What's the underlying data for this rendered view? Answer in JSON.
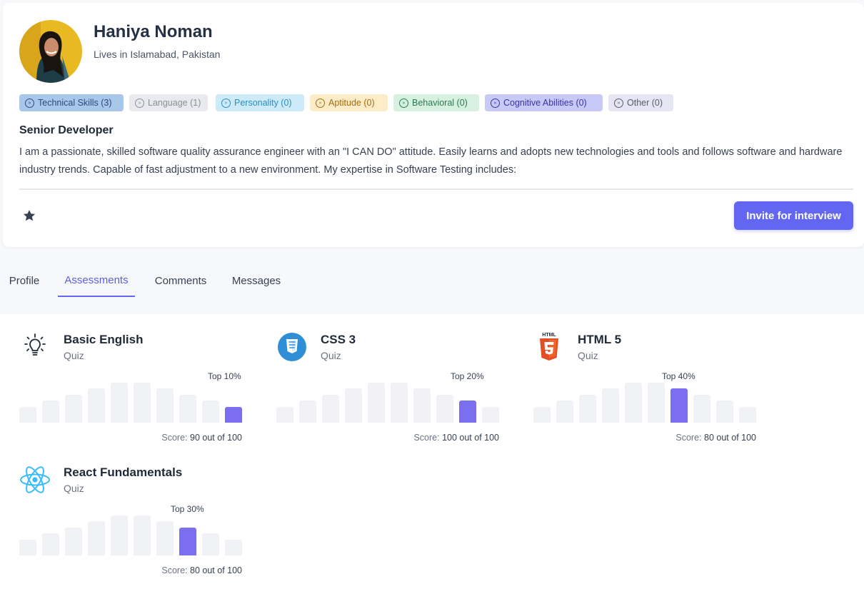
{
  "profile": {
    "name": "Haniya Noman",
    "location": "Lives in Islamabad, Pakistan",
    "role": "Senior Developer",
    "bio": "I am a passionate, skilled software quality assurance engineer with an \"I CAN DO\" attitude. Easily learns and adopts new technologies and tools and follows software and hardware industry trends. Capable of fast adjustment to a new environment. My expertise in Software Testing includes:",
    "invite_label": "Invite for interview"
  },
  "badges": [
    {
      "label": "Technical Skills (3)",
      "bg": "#a9c7ea",
      "fg": "#2b4a78"
    },
    {
      "label": "Language (1)",
      "bg": "#e9eaee",
      "fg": "#8a8f99"
    },
    {
      "label": "Personality (0)",
      "bg": "#cdeaf8",
      "fg": "#2a8fbf"
    },
    {
      "label": "Aptitude (0)",
      "bg": "#fdecc8",
      "fg": "#a66a10"
    },
    {
      "label": "Behavioral (0)",
      "bg": "#d6f1e0",
      "fg": "#2c7a4f"
    },
    {
      "label": "Cognitive Abilities (0)",
      "bg": "#c9c9f7",
      "fg": "#3a32a0"
    },
    {
      "label": "Other (0)",
      "bg": "#e6e6f2",
      "fg": "#5a5a6e"
    }
  ],
  "tabs": [
    "Profile",
    "Assessments",
    "Comments",
    "Messages"
  ],
  "active_tab": "Assessments",
  "assessments": [
    {
      "title": "Basic English",
      "type": "Quiz",
      "top": "Top 10%",
      "score_label": "Score:",
      "score": "90 out of 100",
      "icon": "lightbulb-icon",
      "bar_levels": [
        0.4,
        0.55,
        0.7,
        0.85,
        1.0,
        1.0,
        0.85,
        0.7,
        0.55,
        0.4
      ],
      "highlight_index": 9
    },
    {
      "title": "CSS 3",
      "type": "Quiz",
      "top": "Top 20%",
      "score_label": "Score:",
      "score": "100 out of 100",
      "icon": "css3-icon",
      "bar_levels": [
        0.4,
        0.55,
        0.7,
        0.85,
        1.0,
        1.0,
        0.85,
        0.7,
        0.55,
        0.4
      ],
      "highlight_index": 8
    },
    {
      "title": "HTML 5",
      "type": "Quiz",
      "top": "Top 40%",
      "score_label": "Score:",
      "score": "80 out of 100",
      "icon": "html5-icon",
      "bar_levels": [
        0.4,
        0.55,
        0.7,
        0.85,
        1.0,
        1.0,
        0.85,
        0.7,
        0.55,
        0.4
      ],
      "highlight_index": 6
    },
    {
      "title": "React Fundamentals",
      "type": "Quiz",
      "top": "Top 30%",
      "score_label": "Score:",
      "score": "80 out of 100",
      "icon": "react-icon",
      "bar_levels": [
        0.4,
        0.55,
        0.7,
        0.85,
        1.0,
        1.0,
        0.85,
        0.7,
        0.55,
        0.4
      ],
      "highlight_index": 7
    }
  ],
  "colors": {
    "accent": "#6366f1",
    "bar_highlight": "#7c6ef0",
    "bar_base": "#f1f2f5"
  }
}
